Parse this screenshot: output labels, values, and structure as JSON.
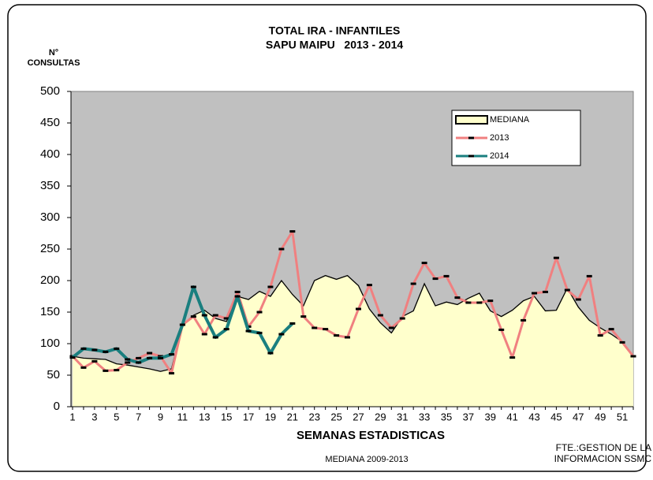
{
  "chart_data": {
    "type": "line",
    "title": [
      "TOTAL IRA - INFANTILES",
      "SAPU MAIPU   2013 - 2014"
    ],
    "y_label": [
      "N°",
      "CONSULTAS"
    ],
    "x_label": "SEMANAS ESTADISTICAS",
    "annotations": [
      "MEDIANA 2009-2013",
      "FTE.:GESTION DE LA",
      "INFORMACION SSMC"
    ],
    "categories": [
      1,
      null,
      3,
      null,
      5,
      null,
      7,
      null,
      9,
      null,
      11,
      null,
      13,
      null,
      15,
      null,
      17,
      null,
      19,
      null,
      21,
      null,
      23,
      null,
      25,
      null,
      27,
      null,
      29,
      null,
      31,
      null,
      33,
      null,
      35,
      null,
      37,
      null,
      39,
      null,
      41,
      null,
      43,
      null,
      45,
      null,
      47,
      null,
      49,
      null,
      51,
      null
    ],
    "series": [
      {
        "name": "MEDIANA",
        "kind": "area",
        "color": "#ffffcc",
        "values": [
          80,
          77,
          76,
          75,
          68,
          66,
          63,
          60,
          56,
          60,
          130,
          145,
          153,
          140,
          135,
          175,
          170,
          183,
          175,
          200,
          178,
          160,
          200,
          208,
          202,
          208,
          192,
          155,
          133,
          117,
          143,
          152,
          195,
          160,
          166,
          162,
          172,
          180,
          152,
          143,
          153,
          168,
          175,
          152,
          153,
          188,
          158,
          137,
          125,
          115,
          103,
          80
        ]
      },
      {
        "name": "2013",
        "kind": "line",
        "color": "#f08080",
        "values": [
          80,
          62,
          72,
          57,
          58,
          70,
          77,
          85,
          80,
          53,
          130,
          143,
          115,
          145,
          140,
          182,
          127,
          150,
          190,
          250,
          278,
          143,
          125,
          123,
          113,
          110,
          155,
          193,
          145,
          125,
          140,
          195,
          228,
          203,
          207,
          173,
          165,
          165,
          168,
          122,
          78,
          137,
          180,
          182,
          236,
          185,
          170,
          207,
          113,
          123,
          102,
          80
        ]
      },
      {
        "name": "2014",
        "kind": "line",
        "color": "#1a7f7f",
        "values": [
          78,
          92,
          90,
          87,
          92,
          75,
          70,
          77,
          77,
          83,
          130,
          190,
          145,
          110,
          123,
          175,
          120,
          117,
          85,
          115,
          132,
          null,
          null,
          null,
          null,
          null,
          null,
          null,
          null,
          null,
          null,
          null,
          null,
          null,
          null,
          null,
          null,
          null,
          null,
          null,
          null,
          null,
          null,
          null,
          null,
          null,
          null,
          null,
          null,
          null,
          null,
          null
        ]
      }
    ],
    "ylim": [
      0,
      500
    ],
    "yticks": [
      0,
      50,
      100,
      150,
      200,
      250,
      300,
      350,
      400,
      450,
      500
    ],
    "grid": false,
    "legend": "upper right",
    "background": "#c0c0c0"
  }
}
